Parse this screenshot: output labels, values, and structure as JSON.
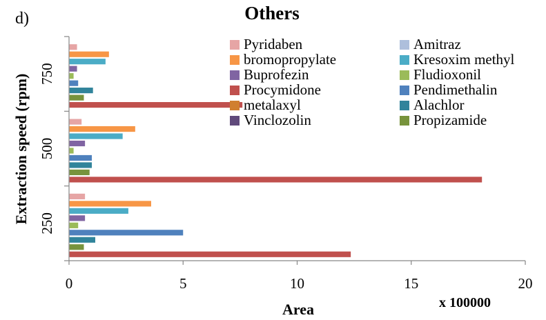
{
  "panel_label": "d)",
  "chart_data": {
    "type": "bar",
    "orientation": "horizontal",
    "title": "Others",
    "xlabel": "Area",
    "ylabel": "Extraction speed (rpm)",
    "x_multiplier_label": "x 100000",
    "xlim": [
      0,
      20
    ],
    "x_ticks": [
      "0",
      "5",
      "10",
      "15",
      "20"
    ],
    "categories": [
      "250",
      "500",
      "750"
    ],
    "grid": false,
    "legend_position": "top-right",
    "series": [
      {
        "name": "Pyridaben",
        "color": "#e6a5a5",
        "values": [
          0.7,
          0.55,
          0.35
        ]
      },
      {
        "name": "Amitraz",
        "color": "#aebfdc",
        "values": [
          0.0,
          0.0,
          0.0
        ]
      },
      {
        "name": "bromopropylate",
        "color": "#f79646",
        "values": [
          3.6,
          2.9,
          1.75
        ]
      },
      {
        "name": "Kresoxim methyl",
        "color": "#4bacc6",
        "values": [
          2.6,
          2.35,
          1.6
        ]
      },
      {
        "name": "Buprofezin",
        "color": "#8064a2",
        "values": [
          0.7,
          0.7,
          0.35
        ]
      },
      {
        "name": "Fludioxonil",
        "color": "#9bbb59",
        "values": [
          0.4,
          0.2,
          0.2
        ]
      },
      {
        "name": "Procymidone",
        "color": "#c0504d",
        "values": [
          12.35,
          18.1,
          7.6
        ]
      },
      {
        "name": "Pendimethalin",
        "color": "#4f81bd",
        "values": [
          5.0,
          1.0,
          0.4
        ]
      },
      {
        "name": "metalaxyl",
        "color": "#d07f2f",
        "values": [
          0.0,
          0.0,
          0.0
        ]
      },
      {
        "name": "Alachlor",
        "color": "#31849b",
        "values": [
          1.15,
          1.0,
          1.05
        ]
      },
      {
        "name": "Vinclozolin",
        "color": "#604a7b",
        "values": [
          0.0,
          0.0,
          0.0
        ]
      },
      {
        "name": "Propizamide",
        "color": "#77933c",
        "values": [
          0.65,
          0.9,
          0.65
        ]
      }
    ],
    "bar_order_top_to_bottom": [
      "Pyridaben",
      "bromopropylate",
      "Kresoxim methyl",
      "Buprofezin",
      "Fludioxonil",
      "Pendimethalin",
      "Alachlor",
      "Propizamide",
      "Procymidone"
    ]
  }
}
